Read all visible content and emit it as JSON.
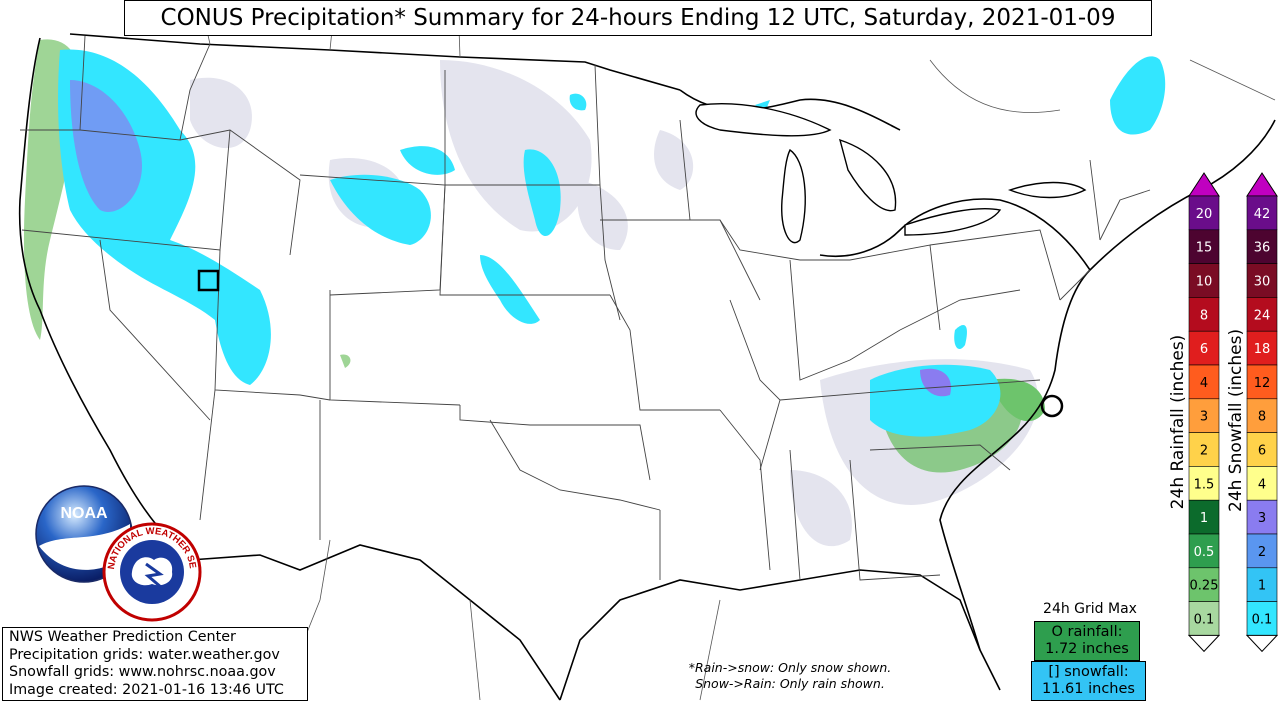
{
  "title": "CONUS Precipitation* Summary for 24-hours Ending 12 UTC, Saturday, 2021-01-09",
  "info": {
    "line1": "NWS Weather Prediction Center",
    "line2": "Precipitation grids: water.weather.gov",
    "line3": "Snowfall grids: www.nohrsc.noaa.gov",
    "line4": "Image created: 2021-01-16 13:46 UTC"
  },
  "footnote": {
    "line1": "*Rain->snow: Only snow shown.",
    "line2": "Snow->Rain: Only rain shown."
  },
  "grid_max": {
    "label": "24h Grid Max",
    "rain_line1": "O rainfall:",
    "rain_line2": "1.72 inches",
    "snow_line1": "[] snowfall:",
    "snow_line2": "11.61 inches"
  },
  "rain_scale": {
    "label": "24h Rainfall (inches)",
    "levels": [
      "0.1",
      "0.25",
      "0.5",
      "1",
      "1.5",
      "2",
      "3",
      "4",
      "6",
      "8",
      "10",
      "15",
      "20"
    ],
    "colors": [
      "#a8d8a0",
      "#6dc46c",
      "#2e9e4e",
      "#0c6b2c",
      "#ffff8c",
      "#ffd24a",
      "#ff9e3c",
      "#ff5c1e",
      "#e01e1e",
      "#b40c1e",
      "#7a0c24",
      "#4d0430",
      "#6a0d8a"
    ],
    "top_arrow": "#c000c0"
  },
  "snow_scale": {
    "label": "24h Snowfall (inches)",
    "levels": [
      "0.1",
      "1",
      "2",
      "3",
      "4",
      "6",
      "8",
      "12",
      "18",
      "24",
      "30",
      "36",
      "42"
    ],
    "colors": [
      "#33e6ff",
      "#33c4f5",
      "#5a96f0",
      "#8a7cf0",
      "#ffff8c",
      "#ffd24a",
      "#ff9e3c",
      "#ff5c1e",
      "#e01e1e",
      "#b40c1e",
      "#7a0c24",
      "#4d0430",
      "#6a0d8a"
    ],
    "top_arrow": "#c000c0"
  },
  "logos": {
    "noaa_text": "NOAA",
    "nws_text": "NATIONAL WEATHER SERVICE"
  }
}
